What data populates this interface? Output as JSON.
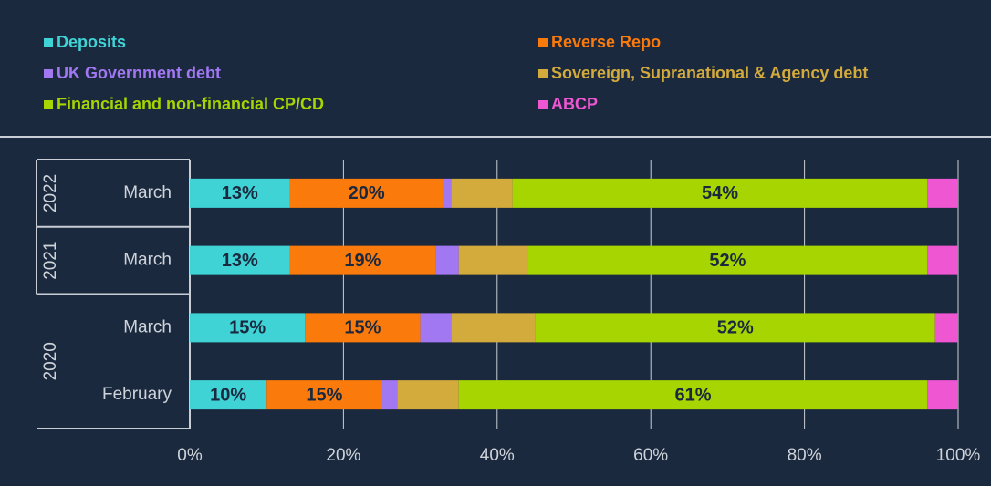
{
  "chart_data": {
    "type": "stacked_bar_horizontal",
    "categories": [
      "March",
      "March",
      "March",
      "February"
    ],
    "groups": [
      {
        "name": "2022",
        "count": 1
      },
      {
        "name": "2021",
        "count": 1
      },
      {
        "name": "2020",
        "count": 2
      }
    ],
    "series": [
      {
        "name": "Deposits",
        "color": "#3fd3d6",
        "values": [
          13,
          13,
          15,
          10
        ],
        "value_labels": [
          "13%",
          "13%",
          "15%",
          "10%"
        ]
      },
      {
        "name": "Reverse Repo",
        "color": "#fb7a0c",
        "values": [
          20,
          19,
          15,
          15
        ],
        "value_labels": [
          "20%",
          "19%",
          "15%",
          "15%"
        ]
      },
      {
        "name": "UK Government debt",
        "color": "#a277f2",
        "values": [
          1,
          3,
          4,
          2
        ],
        "value_labels": [
          null,
          null,
          null,
          null
        ]
      },
      {
        "name": "Sovereign, Supranational & Agency debt",
        "color": "#d3aa3c",
        "values": [
          8,
          9,
          11,
          8
        ],
        "value_labels": [
          null,
          null,
          null,
          null
        ]
      },
      {
        "name": "Financial and non-financial CP/CD",
        "color": "#a6d502",
        "values": [
          54,
          52,
          52,
          61
        ],
        "value_labels": [
          "54%",
          "52%",
          "52%",
          "61%"
        ]
      },
      {
        "name": "ABCP",
        "color": "#ef56d2",
        "values": [
          4,
          4,
          3,
          4
        ],
        "value_labels": [
          null,
          null,
          null,
          null
        ]
      }
    ],
    "xlim": [
      0,
      100
    ],
    "xticks": [
      {
        "value": 0,
        "label": "0%"
      },
      {
        "value": 20,
        "label": "20%"
      },
      {
        "value": 40,
        "label": "40%"
      },
      {
        "value": 60,
        "label": "60%"
      },
      {
        "value": 80,
        "label": "80%"
      },
      {
        "value": 100,
        "label": "100%"
      }
    ],
    "grid": true
  }
}
